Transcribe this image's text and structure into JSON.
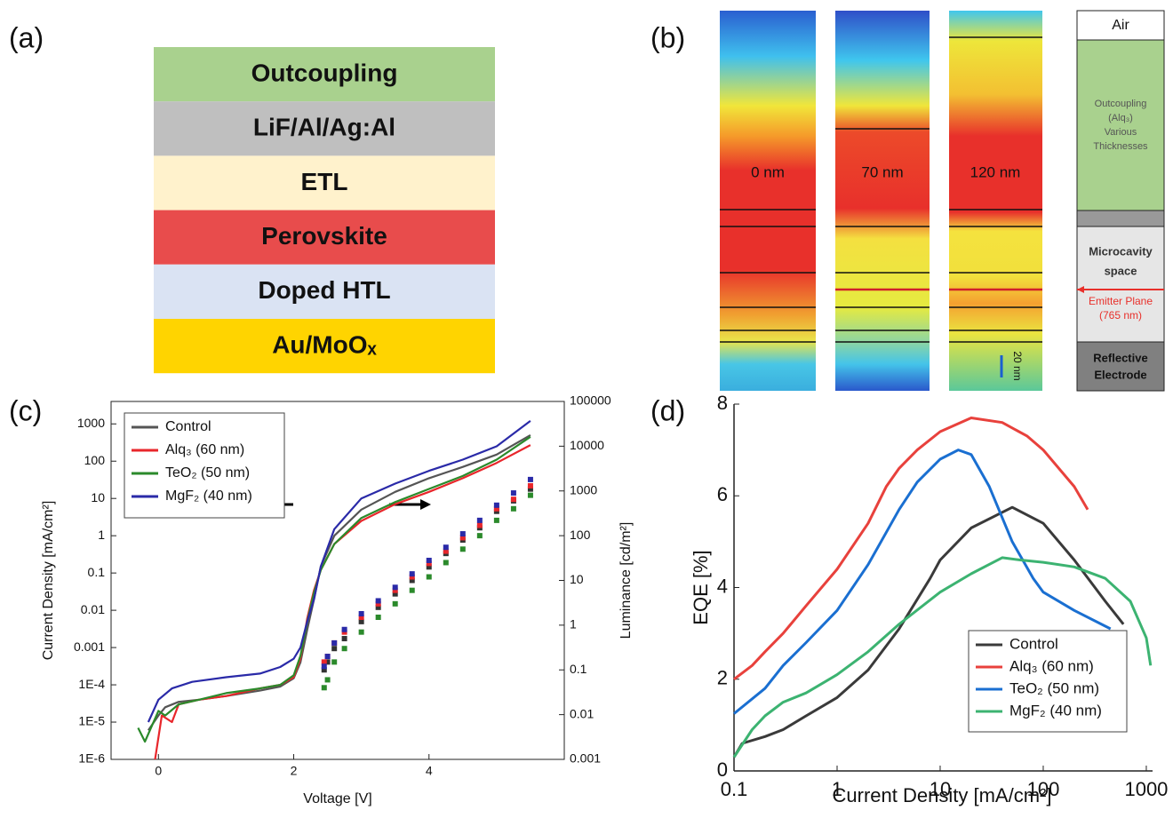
{
  "panel_labels": [
    "(a)",
    "(b)",
    "(c)",
    "(d)"
  ],
  "panel_a": {
    "layers": [
      {
        "label": "Outcoupling",
        "color": "#a9d18e"
      },
      {
        "label": "LiF/Al/Ag:Al",
        "color": "#bfbfbf"
      },
      {
        "label": "ETL",
        "color": "#fff2cc"
      },
      {
        "label": "Perovskite",
        "color": "#e84c4c"
      },
      {
        "label": "Doped HTL",
        "color": "#dae3f3"
      },
      {
        "label": "Au/MoOₓ",
        "color": "#ffd400"
      }
    ]
  },
  "panel_b": {
    "columns": [
      "0 nm",
      "70 nm",
      "120 nm"
    ],
    "scale_bar": "20 nm",
    "stack": {
      "air": "Air",
      "outcoupling": [
        "Outcoupling",
        "(Alq₃)",
        "Various",
        "Thicknesses"
      ],
      "microcavity": [
        "Microcavity",
        "space"
      ],
      "emitter": [
        "Emitter Plane",
        "(765 nm)"
      ],
      "electrode": [
        "Reflective",
        "Electrode"
      ]
    }
  },
  "chart_data": [
    {
      "type": "line",
      "xlabel": "Voltage [V]",
      "ylabel": "Current Density [mA/cm²]",
      "y2label": "Luminance [cd/m²]",
      "xlim": [
        -0.7,
        6.0
      ],
      "xticks": [
        0,
        2,
        4
      ],
      "ylim": [
        1e-06,
        4000
      ],
      "ylog": true,
      "yticks": [
        {
          "value": 1e-06,
          "label": "1E-6"
        },
        {
          "value": 1e-05,
          "label": "1E-5"
        },
        {
          "value": 0.0001,
          "label": "1E-4"
        },
        0.001,
        0.01,
        0.1,
        1,
        10,
        100,
        1000
      ],
      "y2lim": [
        0.001,
        100000
      ],
      "y2log": true,
      "y2ticks": [
        0.001,
        0.01,
        0.1,
        1,
        10,
        100,
        1000,
        10000,
        100000
      ],
      "legend": "upper left",
      "series": [
        {
          "name": "Control",
          "color": "#555555",
          "x": [
            -0.15,
            0,
            0.1,
            0.3,
            0.6,
            1,
            1.5,
            1.8,
            2.0,
            2.1,
            2.2,
            2.3,
            2.4,
            2.6,
            3,
            3.5,
            4,
            4.5,
            5,
            5.5
          ],
          "values": [
            6e-06,
            1.5e-05,
            2.5e-05,
            3.5e-05,
            4e-05,
            5e-05,
            7e-05,
            9e-05,
            0.00015,
            0.0004,
            0.003,
            0.02,
            0.15,
            1,
            5,
            15,
            35,
            70,
            150,
            500
          ]
        },
        {
          "name": "Alq₃ (60 nm)",
          "color": "#e8262b",
          "x": [
            -0.05,
            0.05,
            0.2,
            0.3,
            0.6,
            1,
            1.5,
            1.8,
            2.0,
            2.1,
            2.2,
            2.3,
            2.4,
            2.6,
            3,
            3.5,
            4,
            4.5,
            5,
            5.5
          ],
          "values": [
            1e-06,
            1.5e-05,
            1e-05,
            3e-05,
            4e-05,
            5e-05,
            8e-05,
            0.0001,
            0.00016,
            0.0005,
            0.006,
            0.035,
            0.12,
            0.6,
            2.5,
            7,
            15,
            35,
            90,
            270
          ]
        },
        {
          "name": "TeO₂ (50 nm)",
          "color": "#2b8a2b",
          "x": [
            -0.3,
            -0.2,
            0,
            0.1,
            0.3,
            0.6,
            1,
            1.5,
            1.8,
            2.0,
            2.1,
            2.2,
            2.3,
            2.4,
            2.6,
            3,
            3.5,
            4,
            4.5,
            5,
            5.5
          ],
          "values": [
            7e-06,
            3e-06,
            2e-05,
            1.5e-05,
            3e-05,
            4e-05,
            6e-05,
            8e-05,
            0.0001,
            0.00018,
            0.0006,
            0.005,
            0.03,
            0.12,
            0.6,
            3,
            8,
            18,
            40,
            110,
            450
          ]
        },
        {
          "name": "MgF₂ (40 nm)",
          "color": "#2a2aa8",
          "x": [
            -0.15,
            0,
            0.2,
            0.5,
            1,
            1.5,
            1.8,
            2.0,
            2.1,
            2.2,
            2.3,
            2.4,
            2.6,
            3,
            3.5,
            4,
            4.5,
            5,
            5.5
          ],
          "values": [
            1e-05,
            4e-05,
            8e-05,
            0.00012,
            0.00016,
            0.0002,
            0.0003,
            0.0005,
            0.001,
            0.005,
            0.02,
            0.15,
            1.5,
            10,
            25,
            55,
            110,
            250,
            1200
          ]
        },
        {
          "color": "#333333",
          "axis": "y2",
          "style": "markers",
          "x": [
            2.45,
            2.5,
            2.6,
            2.75,
            3,
            3.25,
            3.5,
            3.75,
            4,
            4.25,
            4.5,
            4.75,
            5,
            5.25,
            5.5
          ],
          "values": [
            0.1,
            0.15,
            0.3,
            0.5,
            1.2,
            2.5,
            5,
            10,
            20,
            40,
            80,
            150,
            350,
            600,
            1100
          ]
        },
        {
          "color": "#e8262b",
          "axis": "y2",
          "style": "markers",
          "x": [
            2.45,
            2.5,
            2.6,
            2.75,
            3,
            3.25,
            3.5,
            3.75,
            4,
            4.25,
            4.5,
            4.75,
            5,
            5.25,
            5.5
          ],
          "values": [
            0.15,
            0.2,
            0.4,
            0.7,
            1.5,
            3,
            6,
            12,
            24,
            45,
            90,
            170,
            400,
            650,
            1300
          ]
        },
        {
          "color": "#2b8a2b",
          "axis": "y2",
          "style": "markers",
          "x": [
            2.45,
            2.5,
            2.6,
            2.75,
            3,
            3.25,
            3.5,
            3.75,
            4,
            4.25,
            4.5,
            4.75,
            5,
            5.25,
            5.5
          ],
          "values": [
            0.04,
            0.06,
            0.15,
            0.3,
            0.7,
            1.5,
            3,
            6,
            12,
            25,
            50,
            100,
            220,
            400,
            800
          ]
        },
        {
          "color": "#2a2aa8",
          "axis": "y2",
          "style": "markers",
          "x": [
            2.45,
            2.5,
            2.6,
            2.75,
            3,
            3.25,
            3.5,
            3.75,
            4,
            4.25,
            4.5,
            4.75,
            5,
            5.25,
            5.5
          ],
          "values": [
            0.12,
            0.2,
            0.4,
            0.8,
            1.8,
            3.5,
            7,
            14,
            28,
            55,
            110,
            220,
            480,
            900,
            1800
          ]
        }
      ]
    },
    {
      "type": "line",
      "xlabel": "Current Density [mA/cm²]",
      "ylabel": "EQE [%]",
      "xlim": [
        0.1,
        1150
      ],
      "xlog": true,
      "xticks": [
        0.1,
        1,
        10,
        100,
        1000
      ],
      "ylim": [
        0,
        8
      ],
      "yticks": [
        0,
        2,
        4,
        6,
        8
      ],
      "legend": "lower right",
      "series": [
        {
          "name": "Control",
          "color": "#3a3a3a",
          "x": [
            0.1,
            0.12,
            0.2,
            0.3,
            0.5,
            1,
            2,
            4,
            8,
            10,
            20,
            50,
            100,
            200,
            400,
            600
          ],
          "values": [
            0.3,
            0.6,
            0.75,
            0.9,
            1.2,
            1.6,
            2.2,
            3.1,
            4.2,
            4.6,
            5.3,
            5.75,
            5.4,
            4.6,
            3.7,
            3.2
          ]
        },
        {
          "name": "Alq₃ (60 nm)",
          "color": "#e8413c",
          "x": [
            0.1,
            0.15,
            0.2,
            0.3,
            0.5,
            1,
            2,
            3,
            4,
            6,
            10,
            20,
            40,
            70,
            100,
            200,
            270
          ],
          "values": [
            2,
            2.3,
            2.6,
            3.0,
            3.6,
            4.4,
            5.4,
            6.2,
            6.6,
            7.0,
            7.4,
            7.7,
            7.6,
            7.3,
            7.0,
            6.2,
            5.7
          ]
        },
        {
          "name": "TeO₂ (50 nm)",
          "color": "#1a6fd1",
          "x": [
            0.1,
            0.2,
            0.3,
            0.5,
            1,
            2,
            4,
            6,
            10,
            15,
            20,
            30,
            50,
            80,
            100,
            200,
            450
          ],
          "values": [
            1.25,
            1.8,
            2.3,
            2.8,
            3.5,
            4.5,
            5.7,
            6.3,
            6.8,
            7.0,
            6.9,
            6.2,
            5.0,
            4.2,
            3.9,
            3.5,
            3.1
          ]
        },
        {
          "name": "MgF₂ (40 nm)",
          "color": "#3cb371",
          "x": [
            0.1,
            0.15,
            0.2,
            0.3,
            0.5,
            1,
            2,
            4,
            10,
            20,
            40,
            60,
            100,
            200,
            400,
            700,
            1000,
            1100
          ],
          "values": [
            0.3,
            0.9,
            1.2,
            1.5,
            1.7,
            2.1,
            2.6,
            3.2,
            3.9,
            4.3,
            4.65,
            4.6,
            4.55,
            4.45,
            4.2,
            3.7,
            2.9,
            2.3
          ]
        }
      ]
    }
  ]
}
